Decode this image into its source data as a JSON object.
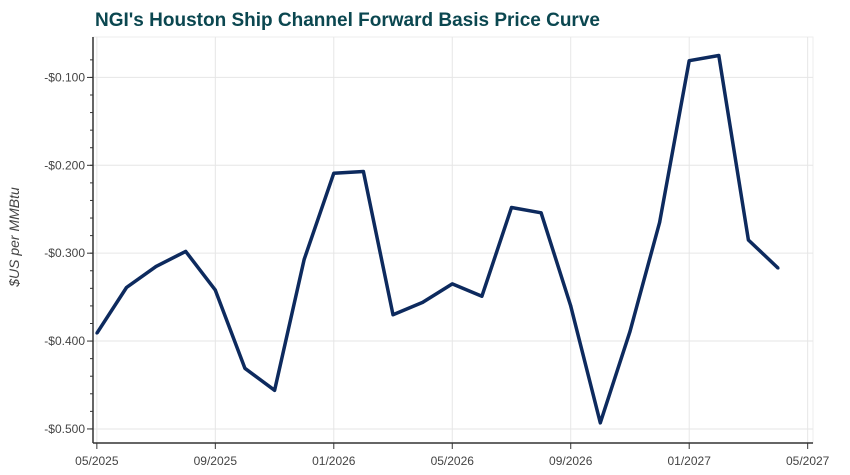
{
  "chart_data": {
    "type": "line",
    "title": "NGI's Houston Ship Channel Forward Basis Price Curve",
    "xlabel": "",
    "ylabel": "$US per MMBtu",
    "x_ticks": [
      "05/2025",
      "09/2025",
      "01/2026",
      "05/2026",
      "09/2026",
      "01/2027",
      "05/2027"
    ],
    "y_ticks": [
      "-$0.100",
      "-$0.200",
      "-$0.300",
      "-$0.400",
      "-$0.500"
    ],
    "y_tick_values": [
      -0.1,
      -0.2,
      -0.3,
      -0.4,
      -0.5
    ],
    "ylim": [
      -0.516,
      -0.054
    ],
    "xlim": [
      "2025-04",
      "2027-05"
    ],
    "grid": true,
    "line_color": "#0d2a5e",
    "title_color": "#0b4750",
    "series": [
      {
        "x": [
          "2025-05",
          "2025-06",
          "2025-07",
          "2025-08",
          "2025-09",
          "2025-10",
          "2025-11",
          "2025-12",
          "2026-01",
          "2026-02",
          "2026-03",
          "2026-04",
          "2026-05",
          "2026-06",
          "2026-07",
          "2026-08",
          "2026-09",
          "2026-10",
          "2026-11",
          "2026-12",
          "2027-01",
          "2027-02",
          "2027-03",
          "2027-04"
        ],
        "values": [
          -0.391,
          -0.339,
          -0.315,
          -0.298,
          -0.342,
          -0.431,
          -0.456,
          -0.307,
          -0.209,
          -0.207,
          -0.37,
          -0.356,
          -0.335,
          -0.349,
          -0.248,
          -0.254,
          -0.36,
          -0.493,
          -0.389,
          -0.265,
          -0.081,
          -0.075,
          -0.285,
          -0.317
        ]
      }
    ]
  }
}
